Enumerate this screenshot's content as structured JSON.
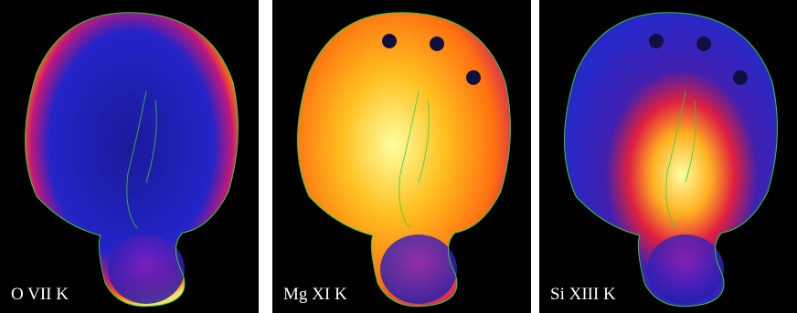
{
  "panels": [
    {
      "label": "O VII K"
    },
    {
      "label": "Mg XI K"
    },
    {
      "label": "Si XIII K"
    }
  ]
}
